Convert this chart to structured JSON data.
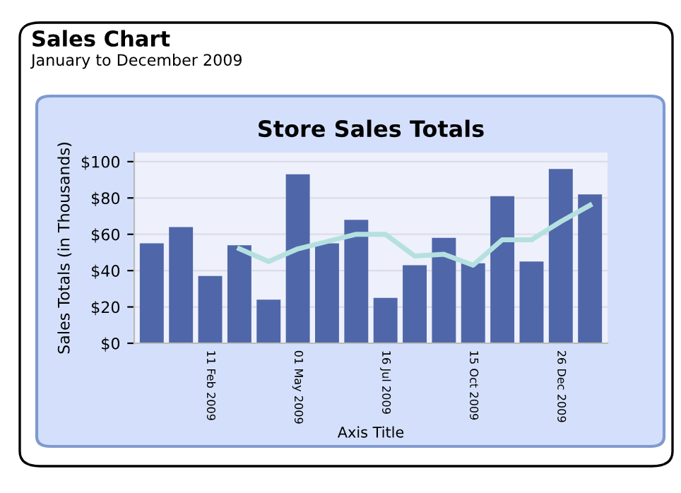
{
  "chart_data": {
    "type": "bar",
    "title": "Store Sales Totals",
    "annotations": [
      "Sales Chart",
      "January to December 2009"
    ],
    "xlabel": "Axis Title",
    "ylabel": "Sales Totals (in Thousands)",
    "categories": [
      null,
      null,
      "11 Feb 2009",
      null,
      null,
      "01 May 2009",
      null,
      null,
      "16 Jul 2009",
      null,
      null,
      "15 Oct 2009",
      null,
      null,
      "26 Dec 2009",
      null
    ],
    "series": [
      {
        "color": "#4f67a8",
        "values": [
          55,
          64,
          37,
          54,
          24,
          93,
          55,
          68,
          25,
          43,
          58,
          44,
          81,
          45,
          96,
          82
        ]
      },
      {
        "type": "line",
        "color": "#b5e0e0",
        "values": [
          null,
          null,
          null,
          52,
          45,
          52,
          56,
          60,
          60,
          48,
          49,
          43,
          57,
          57,
          67,
          76
        ]
      }
    ],
    "ylim": [
      0,
      105
    ],
    "yticks": [
      {
        "value": 0,
        "label": "$0"
      },
      {
        "value": 20,
        "label": "$20"
      },
      {
        "value": 40,
        "label": "$40"
      },
      {
        "value": 60,
        "label": "$60"
      },
      {
        "value": 80,
        "label": "$80"
      },
      {
        "value": 100,
        "label": "$100"
      }
    ],
    "grid": "y",
    "marker": "none",
    "line_style": "solid"
  }
}
